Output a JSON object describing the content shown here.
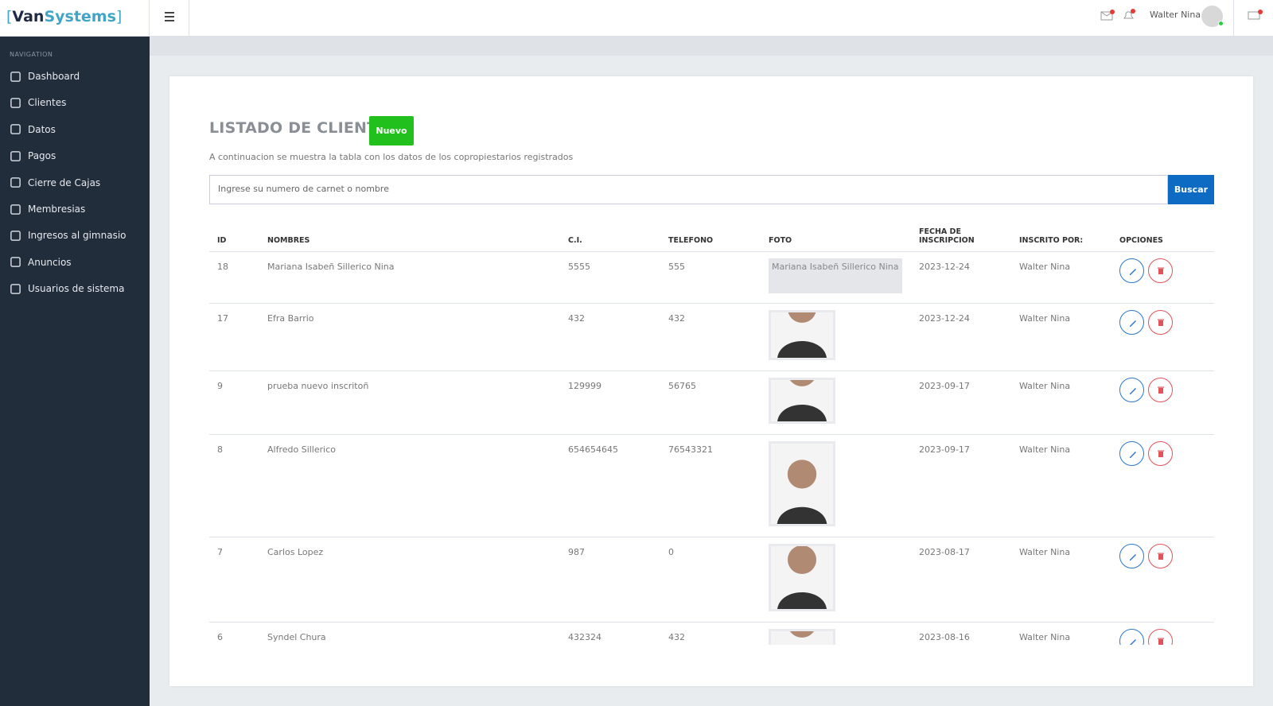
{
  "header": {
    "brand_prefix": "Van",
    "brand_suffix": "Systems",
    "user": "Walter Nina"
  },
  "sidebar": {
    "label": "NAVIGATION",
    "items": [
      "Dashboard",
      "Clientes",
      "Datos",
      "Pagos",
      "Cierre de Cajas",
      "Membresias",
      "Ingresos al gimnasio",
      "Anuncios",
      "Usuarios de sistema"
    ]
  },
  "page": {
    "title": "LISTADO DE CLIENTES",
    "new_button": "Nuevo",
    "description": "A continuacion se muestra la tabla con los datos de los copropiestarios registrados",
    "search_placeholder": "Ingrese su numero de carnet o nombre",
    "search_button": "Buscar"
  },
  "table": {
    "headers": [
      "ID",
      "NOMBRES",
      "C.I.",
      "TELEFONO",
      "FOTO",
      "FECHA DE INSCRIPCION",
      "INSCRITO POR:",
      "OPCIONES"
    ],
    "rows": [
      {
        "id": "18",
        "name": "Mariana Isabeñ Sillerico Nina",
        "ci": "5555",
        "phone": "555",
        "photo_alt": "Mariana Isabeñ Sillerico Nina",
        "date": "2023-12-24",
        "by": "Walter Nina"
      },
      {
        "id": "17",
        "name": "Efra Barrio",
        "ci": "432",
        "phone": "432",
        "date": "2023-12-24",
        "by": "Walter Nina"
      },
      {
        "id": "9",
        "name": "prueba nuevo inscritoñ",
        "ci": "129999",
        "phone": "56765",
        "date": "2023-09-17",
        "by": "Walter Nina"
      },
      {
        "id": "8",
        "name": "Alfredo Sillerico",
        "ci": "654654645",
        "phone": "76543321",
        "date": "2023-09-17",
        "by": "Walter Nina"
      },
      {
        "id": "7",
        "name": "Carlos Lopez",
        "ci": "987",
        "phone": "0",
        "date": "2023-08-17",
        "by": "Walter Nina"
      },
      {
        "id": "6",
        "name": "Syndel Chura",
        "ci": "432324",
        "phone": "432",
        "date": "2023-08-16",
        "by": "Walter Nina"
      }
    ]
  }
}
